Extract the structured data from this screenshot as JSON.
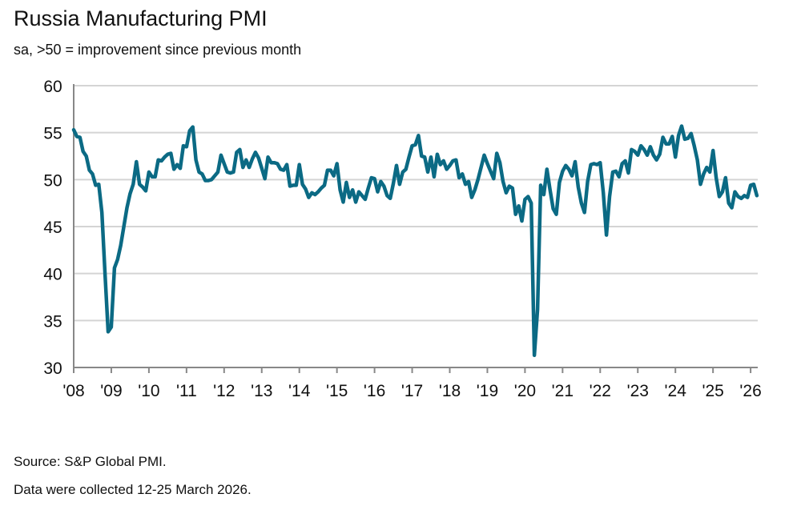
{
  "chart_data": {
    "type": "line",
    "title": "Russia Manufacturing PMI",
    "subtitle": "sa, >50 = improvement since previous month",
    "xlabel": "",
    "ylabel": "",
    "ylim": [
      30,
      60
    ],
    "yticks": [
      30,
      35,
      40,
      45,
      50,
      55,
      60
    ],
    "xticks": [
      "'08",
      "'09",
      "'10",
      "'11",
      "'12",
      "'13",
      "'14",
      "'15",
      "'16",
      "'17",
      "'18",
      "'19",
      "'20",
      "'21",
      "'22",
      "'23",
      "'24",
      "'25",
      "'26"
    ],
    "grid": "horizontal",
    "line_color": "#0b6a84",
    "frequency": "monthly",
    "values_by_year": {
      "2008": [
        55.3,
        54.6,
        54.5,
        53.0,
        52.5,
        51.0,
        50.6,
        49.4,
        49.5,
        46.5,
        40.0,
        33.8
      ],
      "2009": [
        34.3,
        40.6,
        41.5,
        43.0,
        45.0,
        47.0,
        48.5,
        49.5,
        51.9,
        49.5,
        49.2,
        48.8
      ],
      "2010": [
        50.8,
        50.3,
        50.3,
        52.1,
        52.0,
        52.4,
        52.7,
        52.8,
        51.1,
        51.6,
        51.2,
        53.6
      ],
      "2011": [
        53.5,
        55.2,
        55.6,
        52.1,
        50.8,
        50.6,
        49.9,
        49.9,
        50.0,
        50.4,
        50.8,
        52.6
      ],
      "2012": [
        51.7,
        50.8,
        50.7,
        50.8,
        52.9,
        53.2,
        51.3,
        52.1,
        51.3,
        52.2,
        52.9,
        52.3
      ],
      "2013": [
        51.2,
        50.1,
        52.4,
        51.8,
        51.8,
        51.7,
        51.1,
        51.0,
        51.6,
        49.3,
        49.4,
        49.4
      ],
      "2014": [
        51.6,
        49.5,
        49.0,
        48.1,
        48.6,
        48.4,
        48.7,
        49.1,
        49.4,
        51.0,
        51.0,
        50.4
      ],
      "2015": [
        51.7,
        48.9,
        47.6,
        49.7,
        48.1,
        48.9,
        47.6,
        48.7,
        48.3,
        47.9,
        49.1,
        50.2
      ],
      "2016": [
        50.1,
        48.7,
        49.8,
        49.3,
        48.3,
        48.0,
        49.6,
        51.5,
        49.5,
        50.8,
        51.1,
        52.4
      ],
      "2017": [
        53.6,
        53.7,
        54.7,
        52.5,
        52.4,
        50.8,
        52.4,
        50.3,
        52.7,
        51.6,
        52.0,
        51.1
      ],
      "2018": [
        51.5,
        52.0,
        52.1,
        50.2,
        50.6,
        49.5,
        49.8,
        48.1,
        48.9,
        50.0,
        51.3,
        52.6
      ],
      "2019": [
        51.7,
        50.9,
        50.1,
        52.8,
        51.8,
        49.8,
        48.6,
        49.3,
        49.1,
        46.3,
        47.2,
        45.6
      ],
      "2020": [
        47.9,
        48.2,
        47.5,
        31.3,
        36.2,
        49.4,
        48.4,
        51.1,
        48.9,
        46.9,
        46.3,
        49.7
      ],
      "2021": [
        50.9,
        51.5,
        51.1,
        50.4,
        51.9,
        49.2,
        47.5,
        46.5,
        49.8,
        51.6,
        51.7,
        51.6
      ],
      "2022": [
        51.8,
        48.6,
        44.1,
        48.2,
        50.8,
        50.9,
        50.3,
        51.7,
        52.0,
        50.7,
        53.2,
        53.0
      ],
      "2023": [
        52.6,
        53.6,
        53.2,
        52.6,
        53.5,
        52.6,
        52.1,
        52.7,
        54.5,
        53.8,
        53.8,
        54.6
      ],
      "2024": [
        52.4,
        54.7,
        55.7,
        54.3,
        54.4,
        54.9,
        53.6,
        52.1,
        49.5,
        50.6,
        51.3,
        50.8
      ],
      "2025": [
        53.1,
        50.2,
        48.2,
        48.7,
        50.2,
        47.5,
        47.0,
        48.7,
        48.2,
        48.0,
        48.3,
        48.1
      ],
      "2026": [
        49.4,
        49.5,
        48.3
      ]
    }
  },
  "footer": {
    "source": "Source: S&P Global PMI.",
    "collection": "Data were collected 12-25 March 2026."
  }
}
